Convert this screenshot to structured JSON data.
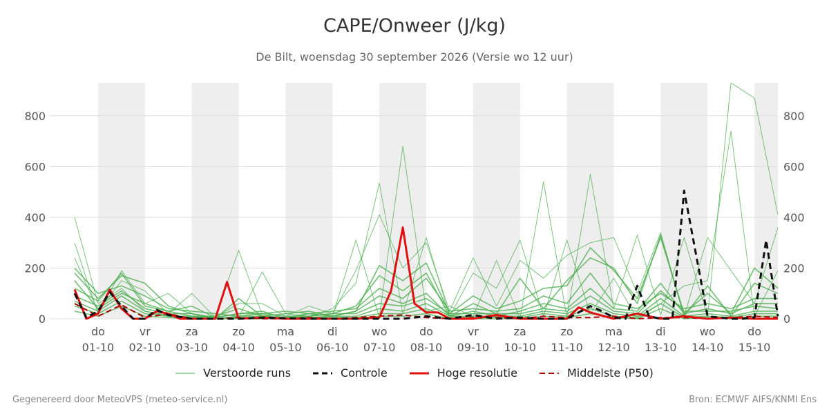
{
  "header": {
    "title": "CAPE/Onweer (J/kg)",
    "subtitle": "De Bilt, woensdag 30 september 2026 (Versie wo 12 uur)"
  },
  "footer": {
    "left": "Gegenereerd door MeteoVPS (meteo-service.nl)",
    "right": "Bron: ECMWF AIFS/KNMI Ens"
  },
  "legend": [
    {
      "label": "Verstoorde runs",
      "color": "#4caf50",
      "style": "thin"
    },
    {
      "label": "Controle",
      "color": "#111111",
      "style": "dashed"
    },
    {
      "label": "Hoge resolutie",
      "color": "#e01010",
      "style": "solid"
    },
    {
      "label": "Middelste (P50)",
      "color": "#aa0000",
      "style": "dashed"
    }
  ],
  "colors": {
    "members": "#4caf50",
    "control": "#111111",
    "hires": "#e01010",
    "p50": "#aa0000",
    "weekend_band": "#eeeeee",
    "grid": "#dddddd"
  },
  "chart_data": {
    "type": "line",
    "ylim": [
      0,
      930
    ],
    "yticks": [
      0,
      200,
      400,
      600,
      800
    ],
    "x_start": "30-09 12:00",
    "x_end": "15-10 12:00",
    "x_labels": [
      {
        "day": "do",
        "date": "01-10"
      },
      {
        "day": "vr",
        "date": "02-10"
      },
      {
        "day": "za",
        "date": "03-10"
      },
      {
        "day": "zo",
        "date": "04-10"
      },
      {
        "day": "ma",
        "date": "05-10"
      },
      {
        "day": "di",
        "date": "06-10"
      },
      {
        "day": "wo",
        "date": "07-10"
      },
      {
        "day": "do",
        "date": "08-10"
      },
      {
        "day": "vr",
        "date": "09-10"
      },
      {
        "day": "za",
        "date": "10-10"
      },
      {
        "day": "zo",
        "date": "11-10"
      },
      {
        "day": "ma",
        "date": "12-10"
      },
      {
        "day": "di",
        "date": "13-10"
      },
      {
        "day": "wo",
        "date": "14-10"
      },
      {
        "day": "do",
        "date": "15-10"
      }
    ],
    "shaded_days": [
      "01-10",
      "03-10",
      "05-10",
      "07-10",
      "09-10",
      "11-10",
      "13-10",
      "15-10"
    ],
    "series": [
      {
        "name": "Controle",
        "x": [
          0,
          0.25,
          0.5,
          0.75,
          1,
          1.25,
          1.5,
          1.75,
          2,
          2.5,
          3,
          3.5,
          4,
          5,
          6,
          7,
          7.5,
          8,
          8.5,
          9,
          9.5,
          10,
          10.5,
          11,
          11.25,
          11.5,
          11.75,
          12,
          12.25,
          12.5,
          12.75,
          13,
          13.5,
          14,
          14.25,
          14.5,
          14.75,
          15
        ],
        "y": [
          100,
          5,
          30,
          105,
          50,
          0,
          0,
          35,
          15,
          0,
          0,
          0,
          5,
          0,
          0,
          0,
          10,
          0,
          15,
          0,
          5,
          0,
          0,
          50,
          30,
          5,
          0,
          130,
          10,
          0,
          0,
          505,
          10,
          0,
          0,
          5,
          310,
          10
        ]
      },
      {
        "name": "Hoge resolutie",
        "x": [
          0,
          0.25,
          0.5,
          0.75,
          1,
          1.25,
          1.5,
          1.75,
          2,
          2.25,
          2.5,
          2.75,
          3,
          3.25,
          3.5,
          4,
          4.5,
          5,
          5.5,
          6,
          6.5,
          6.75,
          7,
          7.25,
          7.5,
          7.75,
          8,
          8.5,
          9,
          9.5,
          10,
          10.5,
          10.75,
          11,
          11.5,
          12,
          12.5,
          13,
          13.5,
          14,
          14.5,
          15
        ],
        "y": [
          115,
          0,
          20,
          115,
          40,
          0,
          0,
          30,
          20,
          0,
          0,
          0,
          0,
          145,
          0,
          5,
          0,
          0,
          0,
          0,
          5,
          110,
          360,
          60,
          25,
          25,
          0,
          0,
          15,
          0,
          0,
          0,
          45,
          25,
          0,
          20,
          0,
          10,
          0,
          5,
          0,
          0
        ]
      },
      {
        "name": "Middelste (P50)",
        "x": [
          0,
          0.5,
          1,
          1.5,
          2,
          2.5,
          3,
          3.5,
          4,
          4.5,
          5,
          5.5,
          6,
          6.5,
          7,
          7.5,
          8,
          8.5,
          9,
          9.5,
          10,
          10.5,
          11,
          11.5,
          12,
          12.5,
          13,
          13.5,
          14,
          14.5,
          15
        ],
        "y": [
          60,
          10,
          55,
          5,
          20,
          0,
          0,
          5,
          0,
          0,
          5,
          0,
          5,
          10,
          15,
          5,
          0,
          5,
          5,
          0,
          10,
          5,
          5,
          10,
          0,
          5,
          5,
          0,
          5,
          10,
          5
        ]
      },
      {
        "name": "Verstoorde runs",
        "members": [
          {
            "x": [
              0,
              0.5,
              1,
              1.5,
              2,
              2.5,
              3,
              3.5,
              4,
              4.5,
              5,
              5.5,
              6,
              6.5,
              7,
              7.5,
              8,
              8.5,
              9,
              9.5,
              10,
              10.5,
              11,
              11.5,
              12,
              12.5,
              13,
              13.5,
              14,
              14.5,
              15
            ],
            "y": [
              400,
              60,
              120,
              30,
              15,
              5,
              10,
              270,
              15,
              0,
              20,
              10,
              310,
              5,
              680,
              30,
              50,
              10,
              230,
              0,
              540,
              5,
              570,
              40,
              330,
              15,
              320,
              10,
              930,
              870,
              410
            ]
          },
          {
            "x": [
              0,
              0.5,
              1,
              1.5,
              2,
              2.5,
              3,
              3.5,
              4,
              4.5,
              5,
              5.5,
              6,
              6.5,
              7,
              7.5,
              8,
              8.5,
              9,
              9.5,
              10,
              10.5,
              11,
              11.5,
              12,
              12.5,
              13,
              13.5,
              14,
              14.5,
              15
            ],
            "y": [
              300,
              20,
              190,
              60,
              100,
              20,
              0,
              5,
              185,
              20,
              10,
              40,
              140,
              535,
              20,
              320,
              10,
              180,
              120,
              310,
              10,
              310,
              20,
              160,
              0,
              60,
              130,
              150,
              740,
              10,
              190
            ]
          },
          {
            "x": [
              0,
              0.5,
              1,
              1.5,
              2,
              2.5,
              3,
              3.5,
              4,
              4.5,
              5,
              5.5,
              6,
              6.5,
              7,
              7.5,
              8,
              8.5,
              9,
              9.5,
              10,
              10.5,
              11,
              11.5,
              12,
              12.5,
              13,
              13.5,
              14,
              14.5,
              15
            ],
            "y": [
              240,
              30,
              150,
              110,
              20,
              100,
              5,
              60,
              60,
              10,
              50,
              20,
              190,
              410,
              200,
              300,
              30,
              240,
              50,
              230,
              160,
              250,
              300,
              320,
              100,
              340,
              10,
              320,
              190,
              60,
              360
            ]
          },
          {
            "x": [
              0,
              0.5,
              1,
              1.5,
              2,
              2.5,
              3,
              3.5,
              4,
              4.5,
              5,
              5.5,
              6,
              6.5,
              7,
              7.5,
              8,
              8.5,
              9,
              9.5,
              10,
              10.5,
              11,
              11.5,
              12,
              12.5,
              13,
              13.5,
              14,
              14.5,
              15
            ],
            "y": [
              180,
              80,
              170,
              140,
              50,
              20,
              0,
              80,
              10,
              5,
              20,
              10,
              30,
              210,
              150,
              220,
              20,
              90,
              40,
              70,
              120,
              130,
              280,
              190,
              80,
              320,
              20,
              100,
              20,
              200,
              120
            ]
          },
          {
            "x": [
              0,
              0.5,
              1,
              1.5,
              2,
              2.5,
              3,
              3.5,
              4,
              4.5,
              5,
              5.5,
              6,
              6.5,
              7,
              7.5,
              8,
              8.5,
              9,
              9.5,
              10,
              10.5,
              11,
              11.5,
              12,
              12.5,
              13,
              13.5,
              14,
              14.5,
              15
            ],
            "y": [
              150,
              40,
              100,
              60,
              30,
              50,
              5,
              20,
              30,
              0,
              10,
              20,
              50,
              170,
              110,
              180,
              10,
              60,
              20,
              160,
              40,
              150,
              240,
              200,
              60,
              330,
              10,
              130,
              10,
              140,
              100
            ]
          },
          {
            "x": [
              0,
              0.5,
              1,
              1.5,
              2,
              2.5,
              3,
              3.5,
              4,
              4.5,
              5,
              5.5,
              6,
              6.5,
              7,
              7.5,
              8,
              8.5,
              9,
              9.5,
              10,
              10.5,
              11,
              11.5,
              12,
              12.5,
              13,
              13.5,
              14,
              14.5,
              15
            ],
            "y": [
              200,
              100,
              130,
              90,
              40,
              30,
              20,
              10,
              20,
              30,
              20,
              30,
              40,
              120,
              80,
              160,
              30,
              40,
              30,
              40,
              90,
              60,
              180,
              60,
              40,
              100,
              40,
              60,
              40,
              80,
              80
            ]
          },
          {
            "x": [
              0,
              0.5,
              1,
              1.5,
              2,
              2.5,
              3,
              3.5,
              4,
              4.5,
              5,
              5.5,
              6,
              6.5,
              7,
              7.5,
              8,
              8.5,
              9,
              9.5,
              10,
              10.5,
              11,
              11.5,
              12,
              12.5,
              13,
              13.5,
              14,
              14.5,
              15
            ],
            "y": [
              120,
              70,
              180,
              50,
              30,
              10,
              10,
              40,
              10,
              20,
              30,
              10,
              30,
              90,
              60,
              100,
              10,
              30,
              10,
              30,
              60,
              40,
              120,
              40,
              30,
              140,
              20,
              40,
              20,
              60,
              60
            ]
          },
          {
            "x": [
              0,
              0.5,
              1,
              1.5,
              2,
              2.5,
              3,
              3.5,
              4,
              4.5,
              5,
              5.5,
              6,
              6.5,
              7,
              7.5,
              8,
              8.5,
              9,
              9.5,
              10,
              10.5,
              11,
              11.5,
              12,
              12.5,
              13,
              13.5,
              14,
              14.5,
              15
            ],
            "y": [
              90,
              50,
              110,
              40,
              20,
              20,
              5,
              20,
              20,
              10,
              10,
              20,
              20,
              60,
              50,
              80,
              20,
              20,
              20,
              20,
              40,
              30,
              90,
              30,
              20,
              110,
              30,
              30,
              30,
              50,
              40
            ]
          },
          {
            "x": [
              0,
              0.5,
              1,
              1.5,
              2,
              2.5,
              3,
              3.5,
              4,
              4.5,
              5,
              5.5,
              6,
              6.5,
              7,
              7.5,
              8,
              8.5,
              9,
              9.5,
              10,
              10.5,
              11,
              11.5,
              12,
              12.5,
              13,
              13.5,
              14,
              14.5,
              15
            ],
            "y": [
              70,
              30,
              90,
              30,
              10,
              10,
              0,
              10,
              10,
              5,
              5,
              10,
              10,
              40,
              30,
              60,
              10,
              10,
              10,
              10,
              30,
              20,
              60,
              20,
              10,
              80,
              10,
              20,
              10,
              30,
              30
            ]
          },
          {
            "x": [
              0,
              0.5,
              1,
              1.5,
              2,
              2.5,
              3,
              3.5,
              4,
              4.5,
              5,
              5.5,
              6,
              6.5,
              7,
              7.5,
              8,
              8.5,
              9,
              9.5,
              10,
              10.5,
              11,
              11.5,
              12,
              12.5,
              13,
              13.5,
              14,
              14.5,
              15
            ],
            "y": [
              50,
              20,
              70,
              20,
              10,
              5,
              0,
              5,
              5,
              0,
              5,
              5,
              5,
              20,
              20,
              40,
              5,
              5,
              5,
              5,
              20,
              10,
              40,
              10,
              5,
              60,
              5,
              10,
              5,
              20,
              20
            ]
          },
          {
            "x": [
              0,
              0.5,
              1,
              1.5,
              2,
              2.5,
              3,
              3.5,
              4,
              4.5,
              5,
              5.5,
              6,
              6.5,
              7,
              7.5,
              8,
              8.5,
              9,
              9.5,
              10,
              10.5,
              11,
              11.5,
              12,
              12.5,
              13,
              13.5,
              14,
              14.5,
              15
            ],
            "y": [
              30,
              10,
              50,
              10,
              5,
              0,
              0,
              0,
              0,
              0,
              0,
              0,
              0,
              10,
              10,
              20,
              0,
              0,
              0,
              0,
              10,
              5,
              20,
              5,
              0,
              40,
              0,
              5,
              0,
              10,
              10
            ]
          }
        ]
      }
    ]
  }
}
